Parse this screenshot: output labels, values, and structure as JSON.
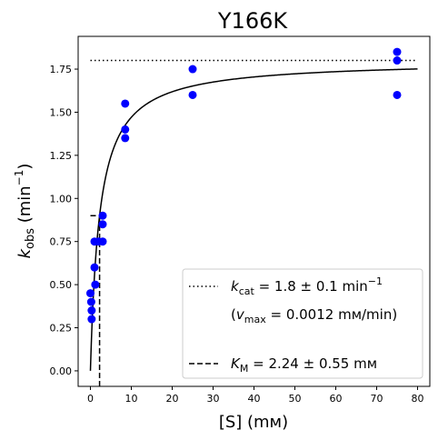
{
  "chart_data": {
    "type": "scatter",
    "title": "Y166K",
    "xlabel": {
      "main": "[S] (mм)"
    },
    "ylabel": {
      "k": "k",
      "sub": "obs",
      "rest": " (min",
      "sup": "−1",
      "close": ")"
    },
    "xlim": [
      -3,
      83
    ],
    "ylim": [
      -0.09,
      1.94
    ],
    "xticks": [
      0,
      10,
      20,
      30,
      40,
      50,
      60,
      70,
      80
    ],
    "yticks": [
      0.0,
      0.25,
      0.5,
      0.75,
      1.0,
      1.25,
      1.5,
      1.75
    ],
    "ytick_labels": [
      "0.00",
      "0.25",
      "0.50",
      "0.75",
      "1.00",
      "1.25",
      "1.50",
      "1.75"
    ],
    "grid": false,
    "legend_position": "lower-right",
    "point_color": "#0000ff",
    "series": [
      {
        "points": [
          [
            0.0,
            0.45
          ],
          [
            0.2,
            0.4
          ],
          [
            0.3,
            0.35
          ],
          [
            0.3,
            0.3
          ],
          [
            1.0,
            0.6
          ],
          [
            1.0,
            0.75
          ],
          [
            1.2,
            0.5
          ],
          [
            2.0,
            0.75
          ],
          [
            3.0,
            0.9
          ],
          [
            3.0,
            0.85
          ],
          [
            3.0,
            0.75
          ],
          [
            8.5,
            1.55
          ],
          [
            8.5,
            1.4
          ],
          [
            8.5,
            1.35
          ],
          [
            25.0,
            1.75
          ],
          [
            25.0,
            1.6
          ],
          [
            75.0,
            1.85
          ],
          [
            75.0,
            1.8
          ],
          [
            75.0,
            1.6
          ]
        ]
      }
    ],
    "fit": {
      "kcat": 1.8,
      "km": 2.24
    },
    "kcat_line": {
      "y": 1.8,
      "x_range": [
        0,
        80
      ],
      "style": "dotted"
    },
    "km_line": {
      "x": 2.24,
      "y_top": 0.9,
      "style": "dashed"
    },
    "legend": {
      "kcat_line": {
        "k": "k",
        "sub": "cat",
        "rest": " = 1.8 ± 0.1 min",
        "sup": "−1"
      },
      "vmax_line": {
        "open": "(",
        "v": "v",
        "sub": "max",
        "rest": " = 0.0012 mм/min)"
      },
      "km_line": {
        "k": "K",
        "sub": "M",
        "rest": " = 2.24 ± 0.55 mм"
      }
    }
  }
}
